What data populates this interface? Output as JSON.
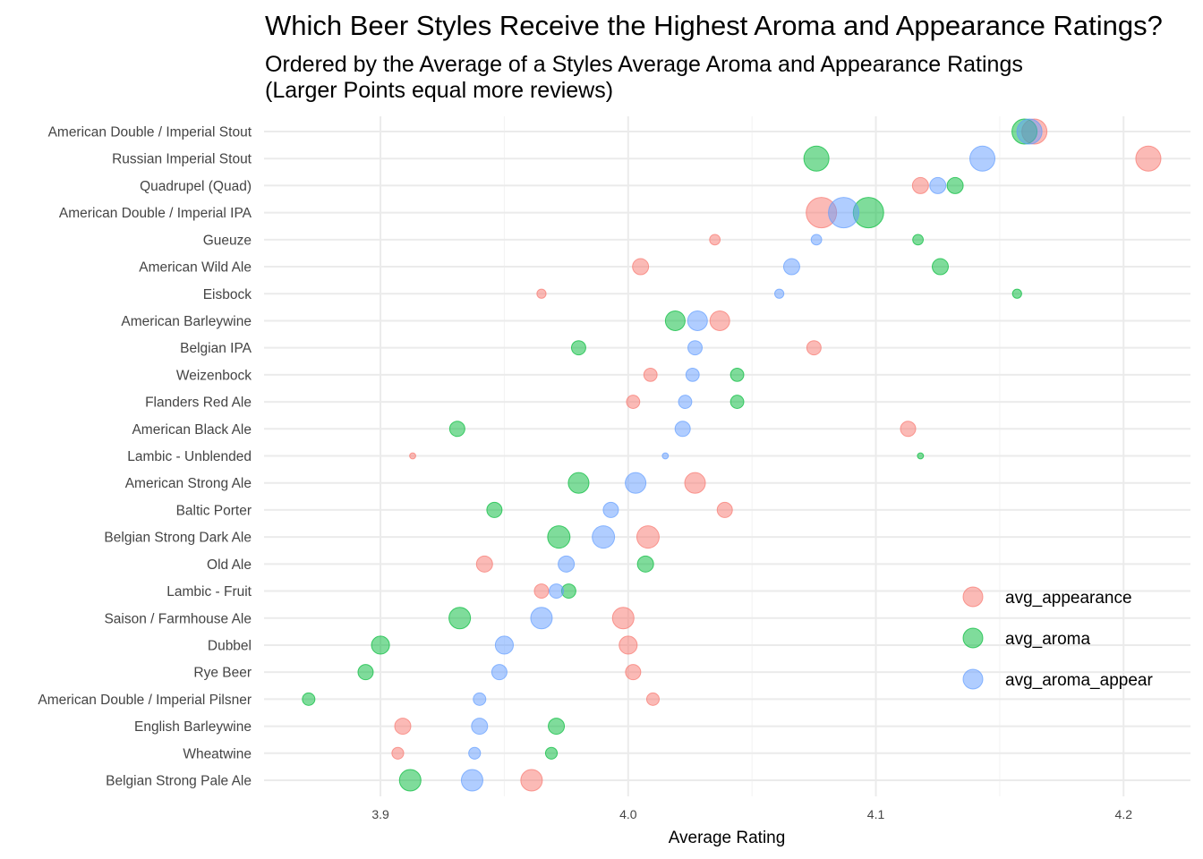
{
  "chart_data": {
    "type": "scatter",
    "title": "Which Beer Styles Receive the Highest Aroma and Appearance Ratings?",
    "subtitle": [
      "Ordered by the Average of a Styles Average Aroma and Appearance Ratings",
      "(Larger Points equal more reviews)"
    ],
    "xlabel": "Average Rating",
    "ylabel": "",
    "xlim": [
      3.853,
      4.227
    ],
    "xticks": [
      "3.9",
      "4.0",
      "4.1",
      "4.2"
    ],
    "xtick_values": [
      3.9,
      4.0,
      4.1,
      4.2
    ],
    "grid": true,
    "legend_position": "right",
    "series": [
      {
        "name": "avg_appearance",
        "color": "#F8766D"
      },
      {
        "name": "avg_aroma",
        "color": "#00BA38"
      },
      {
        "name": "avg_aroma_appear",
        "color": "#619CFF"
      }
    ],
    "categories": [
      {
        "style": "American Double / Imperial Stout",
        "avg_appearance": 4.164,
        "avg_aroma": 4.16,
        "avg_aroma_appear": 4.162,
        "relative_reviews": 0.68
      },
      {
        "style": "Russian Imperial Stout",
        "avg_appearance": 4.21,
        "avg_aroma": 4.076,
        "avg_aroma_appear": 4.143,
        "relative_reviews": 0.68
      },
      {
        "style": "Quadrupel (Quad)",
        "avg_appearance": 4.118,
        "avg_aroma": 4.132,
        "avg_aroma_appear": 4.125,
        "relative_reviews": 0.28
      },
      {
        "style": "American Double / Imperial IPA",
        "avg_appearance": 4.078,
        "avg_aroma": 4.097,
        "avg_aroma_appear": 4.087,
        "relative_reviews": 1.0
      },
      {
        "style": "Gueuze",
        "avg_appearance": 4.035,
        "avg_aroma": 4.117,
        "avg_aroma_appear": 4.076,
        "relative_reviews": 0.12
      },
      {
        "style": "American Wild Ale",
        "avg_appearance": 4.005,
        "avg_aroma": 4.126,
        "avg_aroma_appear": 4.066,
        "relative_reviews": 0.28
      },
      {
        "style": "Eisbock",
        "avg_appearance": 3.965,
        "avg_aroma": 4.157,
        "avg_aroma_appear": 4.061,
        "relative_reviews": 0.09
      },
      {
        "style": "American Barleywine",
        "avg_appearance": 4.037,
        "avg_aroma": 4.019,
        "avg_aroma_appear": 4.028,
        "relative_reviews": 0.42
      },
      {
        "style": "Belgian IPA",
        "avg_appearance": 4.075,
        "avg_aroma": 3.98,
        "avg_aroma_appear": 4.027,
        "relative_reviews": 0.22
      },
      {
        "style": "Weizenbock",
        "avg_appearance": 4.009,
        "avg_aroma": 4.044,
        "avg_aroma_appear": 4.026,
        "relative_reviews": 0.19
      },
      {
        "style": "Flanders Red Ale",
        "avg_appearance": 4.002,
        "avg_aroma": 4.044,
        "avg_aroma_appear": 4.023,
        "relative_reviews": 0.19
      },
      {
        "style": "American Black Ale",
        "avg_appearance": 4.113,
        "avg_aroma": 3.931,
        "avg_aroma_appear": 4.022,
        "relative_reviews": 0.25
      },
      {
        "style": "Lambic - Unblended",
        "avg_appearance": 3.913,
        "avg_aroma": 4.118,
        "avg_aroma_appear": 4.015,
        "relative_reviews": 0.04
      },
      {
        "style": "American Strong Ale",
        "avg_appearance": 4.027,
        "avg_aroma": 3.98,
        "avg_aroma_appear": 4.003,
        "relative_reviews": 0.46
      },
      {
        "style": "Baltic Porter",
        "avg_appearance": 4.039,
        "avg_aroma": 3.946,
        "avg_aroma_appear": 3.993,
        "relative_reviews": 0.25
      },
      {
        "style": "Belgian Strong Dark Ale",
        "avg_appearance": 4.008,
        "avg_aroma": 3.972,
        "avg_aroma_appear": 3.99,
        "relative_reviews": 0.54
      },
      {
        "style": "Old Ale",
        "avg_appearance": 3.942,
        "avg_aroma": 4.007,
        "avg_aroma_appear": 3.975,
        "relative_reviews": 0.28
      },
      {
        "style": "Lambic - Fruit",
        "avg_appearance": 3.965,
        "avg_aroma": 3.976,
        "avg_aroma_appear": 3.971,
        "relative_reviews": 0.22
      },
      {
        "style": "Saison / Farmhouse Ale",
        "avg_appearance": 3.998,
        "avg_aroma": 3.932,
        "avg_aroma_appear": 3.965,
        "relative_reviews": 0.5
      },
      {
        "style": "Dubbel",
        "avg_appearance": 4.0,
        "avg_aroma": 3.9,
        "avg_aroma_appear": 3.95,
        "relative_reviews": 0.35
      },
      {
        "style": "Rye Beer",
        "avg_appearance": 4.002,
        "avg_aroma": 3.894,
        "avg_aroma_appear": 3.948,
        "relative_reviews": 0.25
      },
      {
        "style": "American Double / Imperial Pilsner",
        "avg_appearance": 4.01,
        "avg_aroma": 3.871,
        "avg_aroma_appear": 3.94,
        "relative_reviews": 0.17
      },
      {
        "style": "English Barleywine",
        "avg_appearance": 3.909,
        "avg_aroma": 3.971,
        "avg_aroma_appear": 3.94,
        "relative_reviews": 0.28
      },
      {
        "style": "Wheatwine",
        "avg_appearance": 3.907,
        "avg_aroma": 3.969,
        "avg_aroma_appear": 3.938,
        "relative_reviews": 0.15
      },
      {
        "style": "Belgian Strong Pale Ale",
        "avg_appearance": 3.961,
        "avg_aroma": 3.912,
        "avg_aroma_appear": 3.937,
        "relative_reviews": 0.5
      }
    ]
  }
}
